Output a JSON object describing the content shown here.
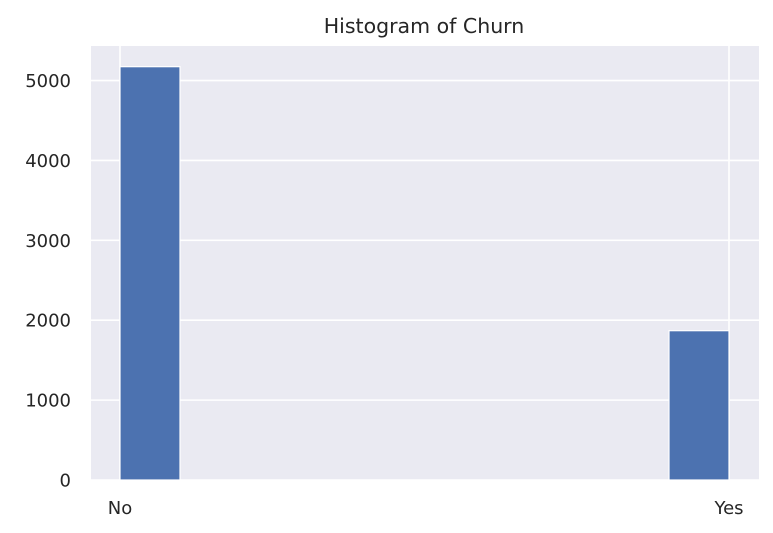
{
  "chart_data": {
    "type": "bar",
    "title": "Histogram of Churn",
    "xlabel": "",
    "ylabel": "",
    "categories": [
      "No",
      "Yes"
    ],
    "values": [
      5174,
      1869
    ],
    "ylim": [
      0,
      5433
    ],
    "yticks": [
      0,
      1000,
      2000,
      3000,
      4000,
      5000
    ],
    "grid": true,
    "legend": "none",
    "colors": {
      "bar": "#4c72b0",
      "background": "#eaeaf2",
      "grid": "#ffffff",
      "text": "#262626"
    }
  }
}
